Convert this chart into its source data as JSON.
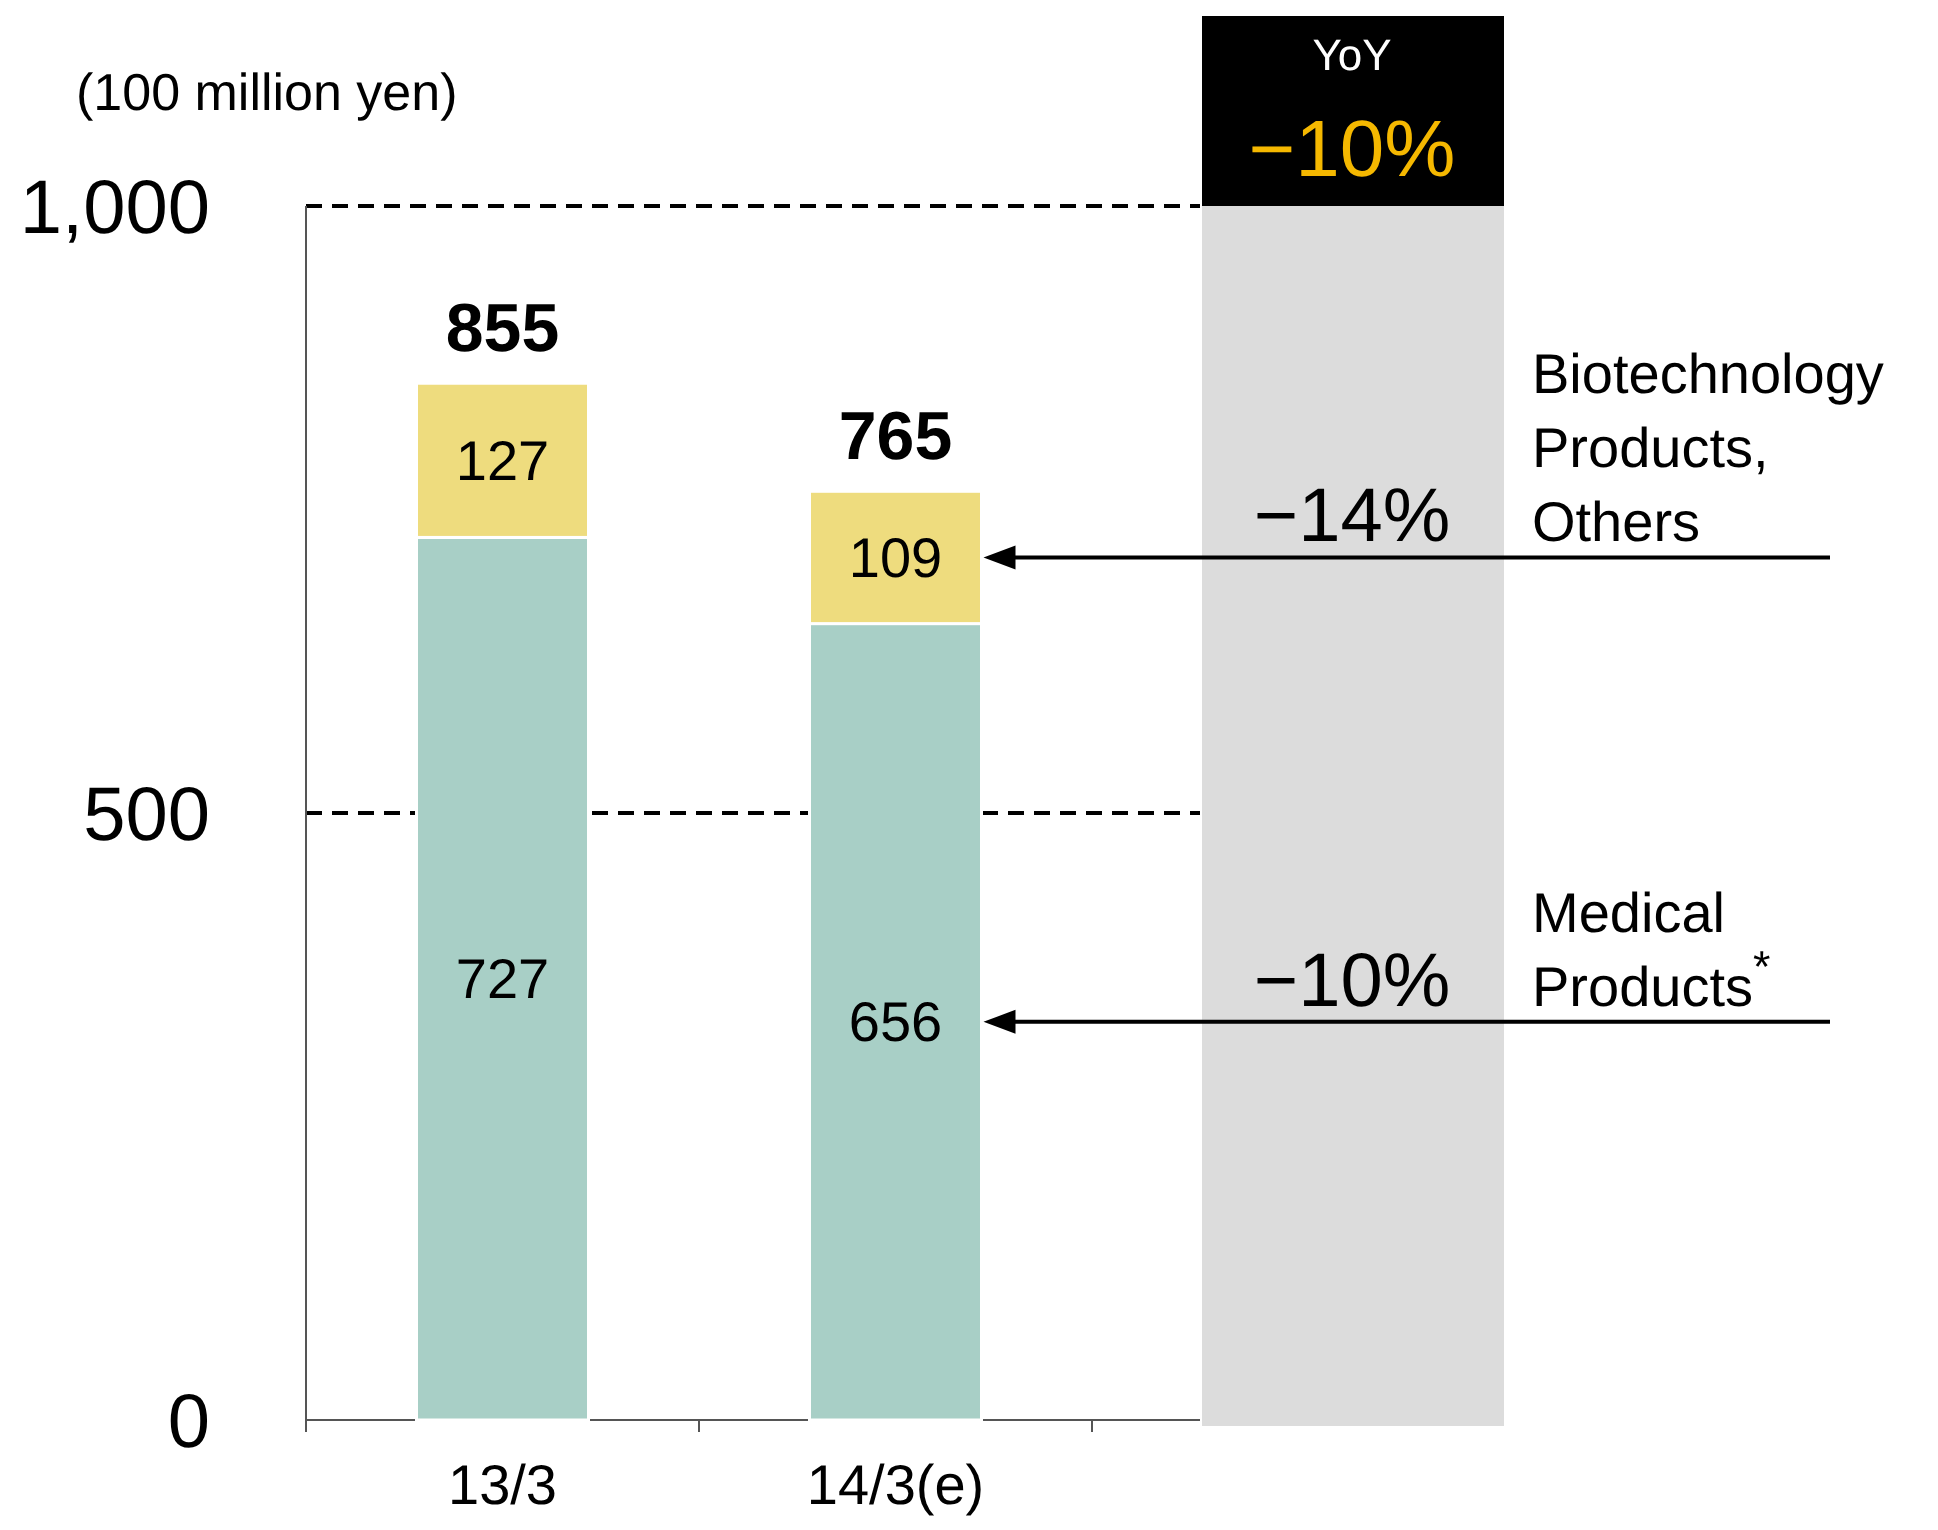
{
  "chart_data": {
    "type": "bar",
    "stacked": true,
    "ylabel": "(100 million yen)",
    "categories": [
      "13/3",
      "14/3(e)"
    ],
    "series": [
      {
        "name": "Medical Products$^{*}$",
        "color": "#a8cfc6",
        "values": [
          727,
          656
        ]
      },
      {
        "name": "Biotechnology Products, Others",
        "color": "#eedc7e",
        "values": [
          127,
          109
        ]
      }
    ],
    "ylim": [
      0,
      1000
    ],
    "yticks": [
      0,
      500,
      {
        "value": 1000,
        "label": "1,000"
      }
    ],
    "grid": "y",
    "data_labels": true,
    "totals": [
      "855",
      "765"
    ],
    "annotations": [
      "YoY",
      "−10%",
      "−10%",
      "−14%"
    ]
  }
}
